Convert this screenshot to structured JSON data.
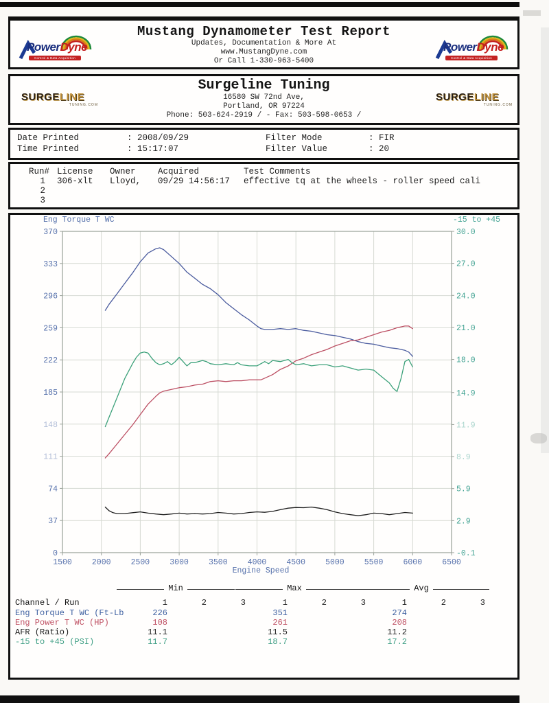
{
  "header": {
    "title": "Mustang Dynamometer Test Report",
    "subtitle_lines": [
      "Updates, Documentation & More At",
      "www.MustangDyne.com",
      "Or Call 1-330-963-5400"
    ],
    "logo": {
      "power": "Power",
      "dyne": "Dyne",
      "tagline": "Control & Data Acquisition"
    }
  },
  "shop": {
    "name": "Surgeline Tuning",
    "address_lines": [
      "16580 SW 72nd Ave,",
      "Portland, OR  97224",
      "Phone: 503-624-2919 /  - Fax: 503-598-0653 /"
    ],
    "logo": {
      "surge": "SURGE",
      "line": "LINE",
      "sub": "TUNING.COM"
    }
  },
  "print_info": {
    "date_label": "Date Printed",
    "date_value": ": 2008/09/29",
    "time_label": "Time Printed",
    "time_value": ": 15:17:07",
    "filter_mode_label": "Filter Mode",
    "filter_mode_value": ": FIR",
    "filter_value_label": "Filter Value",
    "filter_value_value": ": 20"
  },
  "runs": {
    "headers": [
      "Run#",
      "License",
      "Owner",
      "Acquired",
      "Test Comments"
    ],
    "rows": [
      {
        "run": "1",
        "license": "306-xlt",
        "owner": "Lloyd,",
        "acquired": "09/29 14:56:17",
        "comments": "effective tq at the wheels - roller speed cali"
      },
      {
        "run": "2",
        "license": "",
        "owner": "",
        "acquired": "",
        "comments": ""
      },
      {
        "run": "3",
        "license": "",
        "owner": "",
        "acquired": "",
        "comments": ""
      }
    ]
  },
  "chart_data": {
    "type": "line",
    "title": "",
    "xlabel": "Engine Speed",
    "x_range": [
      1500,
      6500
    ],
    "x_ticks": [
      {
        "v": 1500,
        "label": "1500"
      },
      {
        "v": 2000,
        "label": "2000"
      },
      {
        "v": 2500,
        "label": "2500"
      },
      {
        "v": 3000,
        "label": "3000"
      },
      {
        "v": 3500,
        "label": "3500"
      },
      {
        "v": 4000,
        "label": "4000"
      },
      {
        "v": 4500,
        "label": "4500"
      },
      {
        "v": 5000,
        "label": "5000"
      },
      {
        "v": 5500,
        "label": "5500"
      },
      {
        "v": 6000,
        "label": "6000"
      },
      {
        "v": 6500,
        "label": "6500"
      }
    ],
    "left_axis": {
      "label": "Eng Torque T WC",
      "range": [
        0,
        370
      ],
      "ticks": [
        {
          "v": 370,
          "label": "370"
        },
        {
          "v": 333,
          "label": "333"
        },
        {
          "v": 296,
          "label": "296"
        },
        {
          "v": 259,
          "label": "259"
        },
        {
          "v": 222,
          "label": "222"
        },
        {
          "v": 185,
          "label": "185"
        },
        {
          "v": 148,
          "label": "148",
          "faded": true
        },
        {
          "v": 111,
          "label": "111",
          "faded": true
        },
        {
          "v": 74,
          "label": "74"
        },
        {
          "v": 37,
          "label": "37"
        },
        {
          "v": 0,
          "label": "0"
        }
      ]
    },
    "right_axis": {
      "label": "-15 to +45",
      "range": [
        -0.1,
        30.0
      ],
      "ticks": [
        {
          "v": 30.0,
          "label": "30.0"
        },
        {
          "v": 27.0,
          "label": "27.0"
        },
        {
          "v": 24.0,
          "label": "24.0"
        },
        {
          "v": 21.0,
          "label": "21.0"
        },
        {
          "v": 18.0,
          "label": "18.0"
        },
        {
          "v": 14.9,
          "label": "14.9"
        },
        {
          "v": 11.9,
          "label": "11.9",
          "faded": true
        },
        {
          "v": 8.9,
          "label": "8.9",
          "faded": true
        },
        {
          "v": 5.9,
          "label": "5.9"
        },
        {
          "v": 2.9,
          "label": "2.9"
        },
        {
          "v": -0.1,
          "label": "-0.1"
        }
      ]
    },
    "afr_display": {
      "center": 11.2,
      "base_left_value": 45,
      "scale": 25
    },
    "grid": true,
    "legend": "none",
    "colors": {
      "grid": "#d5d9d2",
      "frame": "#98a098",
      "left_text": "#5570ab",
      "right_text": "#43a393"
    },
    "series": [
      {
        "name": "Eng Torque T WC (Ft-Lb)",
        "axis": "left",
        "color": "#4a5b9e",
        "x": [
          2050,
          2100,
          2200,
          2300,
          2400,
          2500,
          2600,
          2700,
          2750,
          2800,
          2900,
          3000,
          3100,
          3200,
          3300,
          3400,
          3500,
          3600,
          3700,
          3800,
          3900,
          4000,
          4050,
          4100,
          4200,
          4300,
          4400,
          4500,
          4600,
          4700,
          4800,
          4900,
          5000,
          5100,
          5200,
          5300,
          5400,
          5500,
          5600,
          5700,
          5800,
          5900,
          5950,
          6000
        ],
        "y": [
          279,
          286,
          298,
          310,
          322,
          335,
          345,
          350,
          351,
          349,
          341,
          333,
          323,
          316,
          309,
          304,
          297,
          288,
          281,
          274,
          268,
          261,
          258,
          257,
          257,
          258,
          257,
          258,
          256,
          255,
          253,
          251,
          250,
          248,
          246,
          243,
          241,
          240,
          238,
          236,
          235,
          233,
          231,
          226
        ]
      },
      {
        "name": "Eng Power T WC (HP)",
        "axis": "left",
        "color": "#bc4f63",
        "x": [
          2050,
          2100,
          2200,
          2300,
          2400,
          2500,
          2600,
          2700,
          2750,
          2800,
          2900,
          3000,
          3100,
          3200,
          3300,
          3400,
          3500,
          3600,
          3700,
          3800,
          3900,
          4000,
          4050,
          4100,
          4200,
          4300,
          4400,
          4500,
          4600,
          4700,
          4800,
          4900,
          5000,
          5100,
          5200,
          5300,
          5400,
          5500,
          5600,
          5700,
          5800,
          5900,
          5950,
          6000
        ],
        "y": [
          109,
          114,
          125,
          136,
          147,
          159,
          171,
          180,
          184,
          186,
          188,
          190,
          191,
          193,
          194,
          197,
          198,
          197,
          198,
          198,
          199,
          199,
          199,
          201,
          205,
          211,
          215,
          221,
          224,
          228,
          231,
          234,
          238,
          241,
          244,
          245,
          248,
          251,
          254,
          256,
          259,
          261,
          261,
          258
        ]
      },
      {
        "name": "-15 to +45 (PSI)",
        "axis": "right",
        "color": "#3ca17a",
        "x": [
          2050,
          2100,
          2200,
          2300,
          2400,
          2450,
          2500,
          2550,
          2600,
          2650,
          2700,
          2750,
          2800,
          2850,
          2900,
          2950,
          3000,
          3050,
          3100,
          3150,
          3200,
          3300,
          3350,
          3400,
          3500,
          3600,
          3700,
          3750,
          3800,
          3900,
          4000,
          4100,
          4150,
          4200,
          4300,
          4400,
          4450,
          4500,
          4600,
          4700,
          4800,
          4900,
          5000,
          5100,
          5200,
          5300,
          5400,
          5500,
          5600,
          5700,
          5750,
          5800,
          5850,
          5900,
          5950,
          6000
        ],
        "y": [
          11.7,
          12.6,
          14.4,
          16.2,
          17.6,
          18.2,
          18.6,
          18.7,
          18.6,
          18.1,
          17.7,
          17.5,
          17.6,
          17.8,
          17.5,
          17.8,
          18.2,
          17.8,
          17.4,
          17.7,
          17.7,
          17.9,
          17.8,
          17.6,
          17.5,
          17.6,
          17.5,
          17.7,
          17.5,
          17.4,
          17.4,
          17.8,
          17.6,
          17.9,
          17.8,
          18.0,
          17.7,
          17.5,
          17.6,
          17.4,
          17.5,
          17.5,
          17.3,
          17.4,
          17.2,
          17.0,
          17.1,
          17.0,
          16.4,
          15.8,
          15.3,
          15.0,
          16.2,
          17.8,
          18.0,
          17.3
        ]
      },
      {
        "name": "AFR (Ratio)",
        "axis": "afr",
        "color": "#1f1f1f",
        "x": [
          2050,
          2100,
          2150,
          2200,
          2300,
          2400,
          2500,
          2600,
          2700,
          2800,
          2900,
          3000,
          3100,
          3200,
          3300,
          3400,
          3500,
          3600,
          3700,
          3800,
          3900,
          4000,
          4100,
          4200,
          4300,
          4400,
          4500,
          4600,
          4700,
          4800,
          4900,
          5000,
          5100,
          5200,
          5300,
          5400,
          5500,
          5600,
          5700,
          5800,
          5900,
          6000
        ],
        "y": [
          11.5,
          11.33,
          11.24,
          11.2,
          11.2,
          11.24,
          11.28,
          11.22,
          11.18,
          11.15,
          11.18,
          11.22,
          11.18,
          11.2,
          11.18,
          11.2,
          11.25,
          11.22,
          11.18,
          11.2,
          11.25,
          11.28,
          11.26,
          11.3,
          11.38,
          11.45,
          11.48,
          11.47,
          11.5,
          11.45,
          11.38,
          11.28,
          11.2,
          11.15,
          11.1,
          11.15,
          11.22,
          11.2,
          11.15,
          11.2,
          11.25,
          11.22
        ]
      }
    ]
  },
  "summary_table": {
    "group_headers": [
      "Min",
      "Max",
      "Avg"
    ],
    "row_header": "Channel / Run",
    "run_columns": [
      "1",
      "2",
      "3"
    ],
    "rows": [
      {
        "channel": "Eng Torque T WC (Ft-Lb",
        "color": "#3c5fa0",
        "min": [
          "226",
          "",
          ""
        ],
        "max": [
          "351",
          "",
          ""
        ],
        "avg": [
          "274",
          "",
          ""
        ]
      },
      {
        "channel": "Eng Power T WC (HP)",
        "color": "#bf5063",
        "min": [
          "108",
          "",
          ""
        ],
        "max": [
          "261",
          "",
          ""
        ],
        "avg": [
          "208",
          "",
          ""
        ]
      },
      {
        "channel": "AFR (Ratio)",
        "color": "#1c1c1c",
        "min": [
          "11.1",
          "",
          ""
        ],
        "max": [
          "11.5",
          "",
          ""
        ],
        "avg": [
          "11.2",
          "",
          ""
        ]
      },
      {
        "channel": "-15 to +45 (PSI)",
        "color": "#3f9f85",
        "min": [
          "11.7",
          "",
          ""
        ],
        "max": [
          "18.7",
          "",
          ""
        ],
        "avg": [
          "17.2",
          "",
          ""
        ]
      }
    ]
  }
}
